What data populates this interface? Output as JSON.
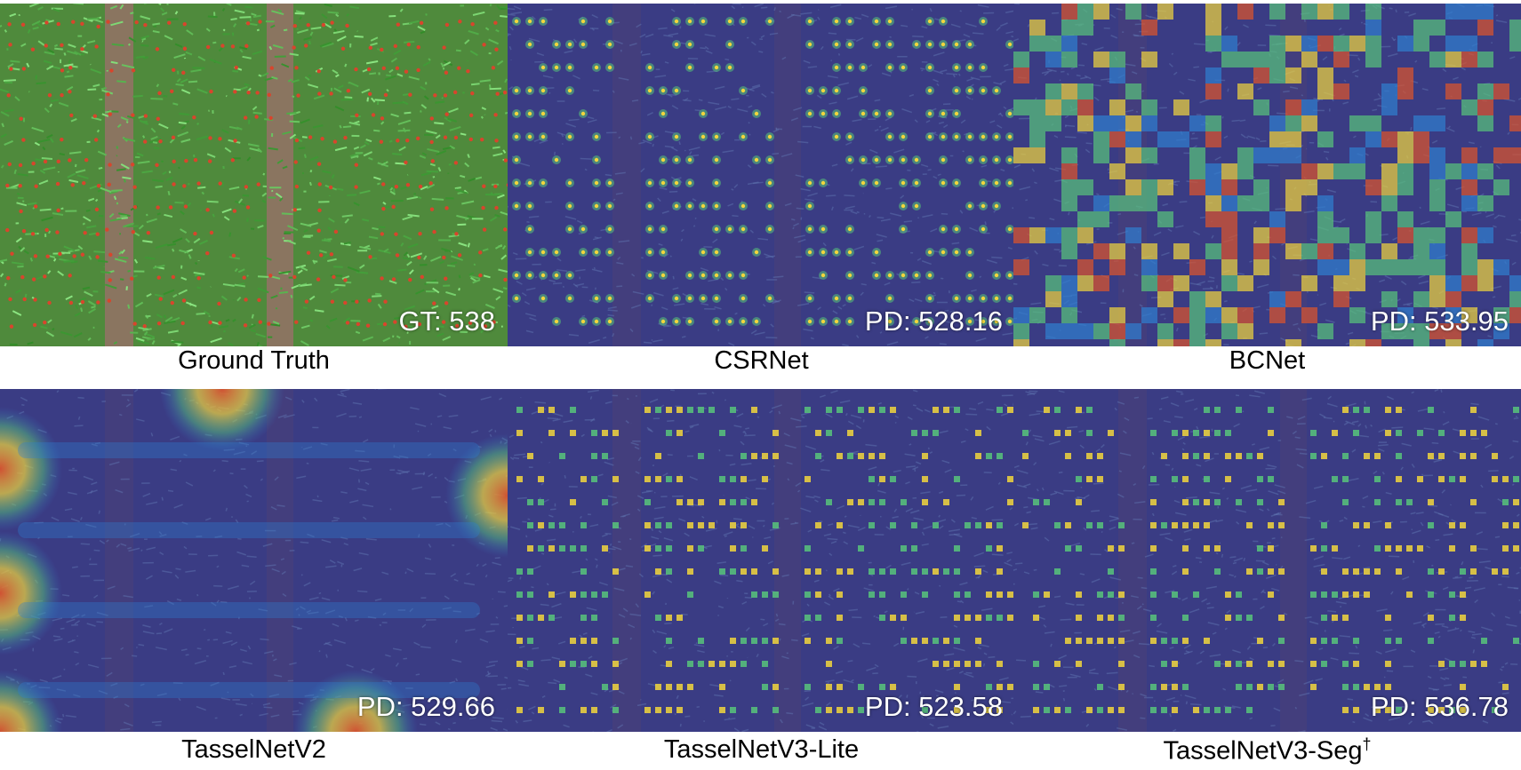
{
  "figure": {
    "panels": [
      {
        "id": "ground-truth",
        "caption": "Ground Truth",
        "count_text": "GT: 538",
        "style": "rgb",
        "dagger": ""
      },
      {
        "id": "csrnet",
        "caption": "CSRNet",
        "count_text": "PD: 528.16",
        "style": "dots",
        "dagger": ""
      },
      {
        "id": "bcnet",
        "caption": "BCNet",
        "count_text": "PD: 533.95",
        "style": "blocks",
        "dagger": ""
      },
      {
        "id": "tasselnetv2",
        "caption": "TasselNetV2",
        "count_text": "PD: 529.66",
        "style": "smooth",
        "dagger": ""
      },
      {
        "id": "tasselnetv3-lite",
        "caption": "TasselNetV3-Lite",
        "count_text": "PD: 523.58",
        "style": "squares",
        "dagger": ""
      },
      {
        "id": "tasselnetv3-seg",
        "caption": "TasselNetV3-Seg",
        "count_text": "PD: 536.78",
        "style": "squares",
        "dagger": "†"
      }
    ],
    "colors": {
      "field_green": "#4f8a3c",
      "soil_brown": "#8a7560",
      "heat_background": "#3a3c84",
      "heat_low": "#2f7fd0",
      "heat_mid": "#58c47a",
      "heat_high": "#f2d63c",
      "heat_peak": "#e0542a",
      "count_text": "#ffffff"
    }
  }
}
